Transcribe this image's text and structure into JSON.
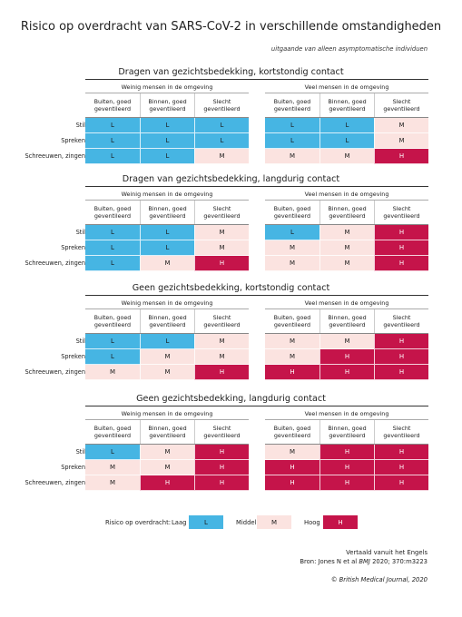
{
  "title": "Risico op overdracht van SARS-CoV-2 in verschillende omstandigheden",
  "subtitle": "uitgaande van alleen asymptomatische individuen",
  "colors": {
    "L": "#46b5e3",
    "M": "#fbe3e0",
    "H": "#c5144a"
  },
  "chart_data": {
    "type": "table",
    "block_headers": [
      "Weinig mensen in de omgeving",
      "Veel mensen in de omgeving"
    ],
    "column_headers": [
      "Buiten, goed geventileerd",
      "Binnen, goed geventileerd",
      "Slecht geventileerd"
    ],
    "row_labels": [
      "Stil",
      "Spreken",
      "Schreeuwen, zingen"
    ],
    "sections": [
      {
        "title": "Dragen van gezichtsbedekking, kortstondig contact",
        "few": [
          [
            "L",
            "L",
            "L"
          ],
          [
            "L",
            "L",
            "L"
          ],
          [
            "L",
            "L",
            "M"
          ]
        ],
        "many": [
          [
            "L",
            "L",
            "M"
          ],
          [
            "L",
            "L",
            "M"
          ],
          [
            "M",
            "M",
            "H"
          ]
        ]
      },
      {
        "title": "Dragen van gezichtsbedekking, langdurig contact",
        "few": [
          [
            "L",
            "L",
            "M"
          ],
          [
            "L",
            "L",
            "M"
          ],
          [
            "L",
            "M",
            "H"
          ]
        ],
        "many": [
          [
            "L",
            "M",
            "H"
          ],
          [
            "M",
            "M",
            "H"
          ],
          [
            "M",
            "M",
            "H"
          ]
        ]
      },
      {
        "title": "Geen gezichtsbedekking, kortstondig contact",
        "few": [
          [
            "L",
            "L",
            "M"
          ],
          [
            "L",
            "M",
            "M"
          ],
          [
            "M",
            "M",
            "H"
          ]
        ],
        "many": [
          [
            "M",
            "M",
            "H"
          ],
          [
            "M",
            "H",
            "H"
          ],
          [
            "H",
            "H",
            "H"
          ]
        ]
      },
      {
        "title": "Geen gezichtsbedekking, langdurig contact",
        "few": [
          [
            "L",
            "M",
            "H"
          ],
          [
            "M",
            "M",
            "H"
          ],
          [
            "M",
            "H",
            "H"
          ]
        ],
        "many": [
          [
            "M",
            "H",
            "H"
          ],
          [
            "H",
            "H",
            "H"
          ],
          [
            "H",
            "H",
            "H"
          ]
        ]
      }
    ]
  },
  "legend": {
    "label": "Risico op overdracht:",
    "items": [
      {
        "name": "Laag",
        "code": "L"
      },
      {
        "name": "Middel",
        "code": "M"
      },
      {
        "name": "Hoog",
        "code": "H"
      }
    ]
  },
  "source": {
    "line1": "Vertaald vanuit het Engels",
    "line2_prefix": "Bron: Jones N et al ",
    "line2_journal": "BMJ",
    "line2_suffix": " 2020; 370:m3223",
    "copyright": "© British Medical Journal, 2020"
  }
}
